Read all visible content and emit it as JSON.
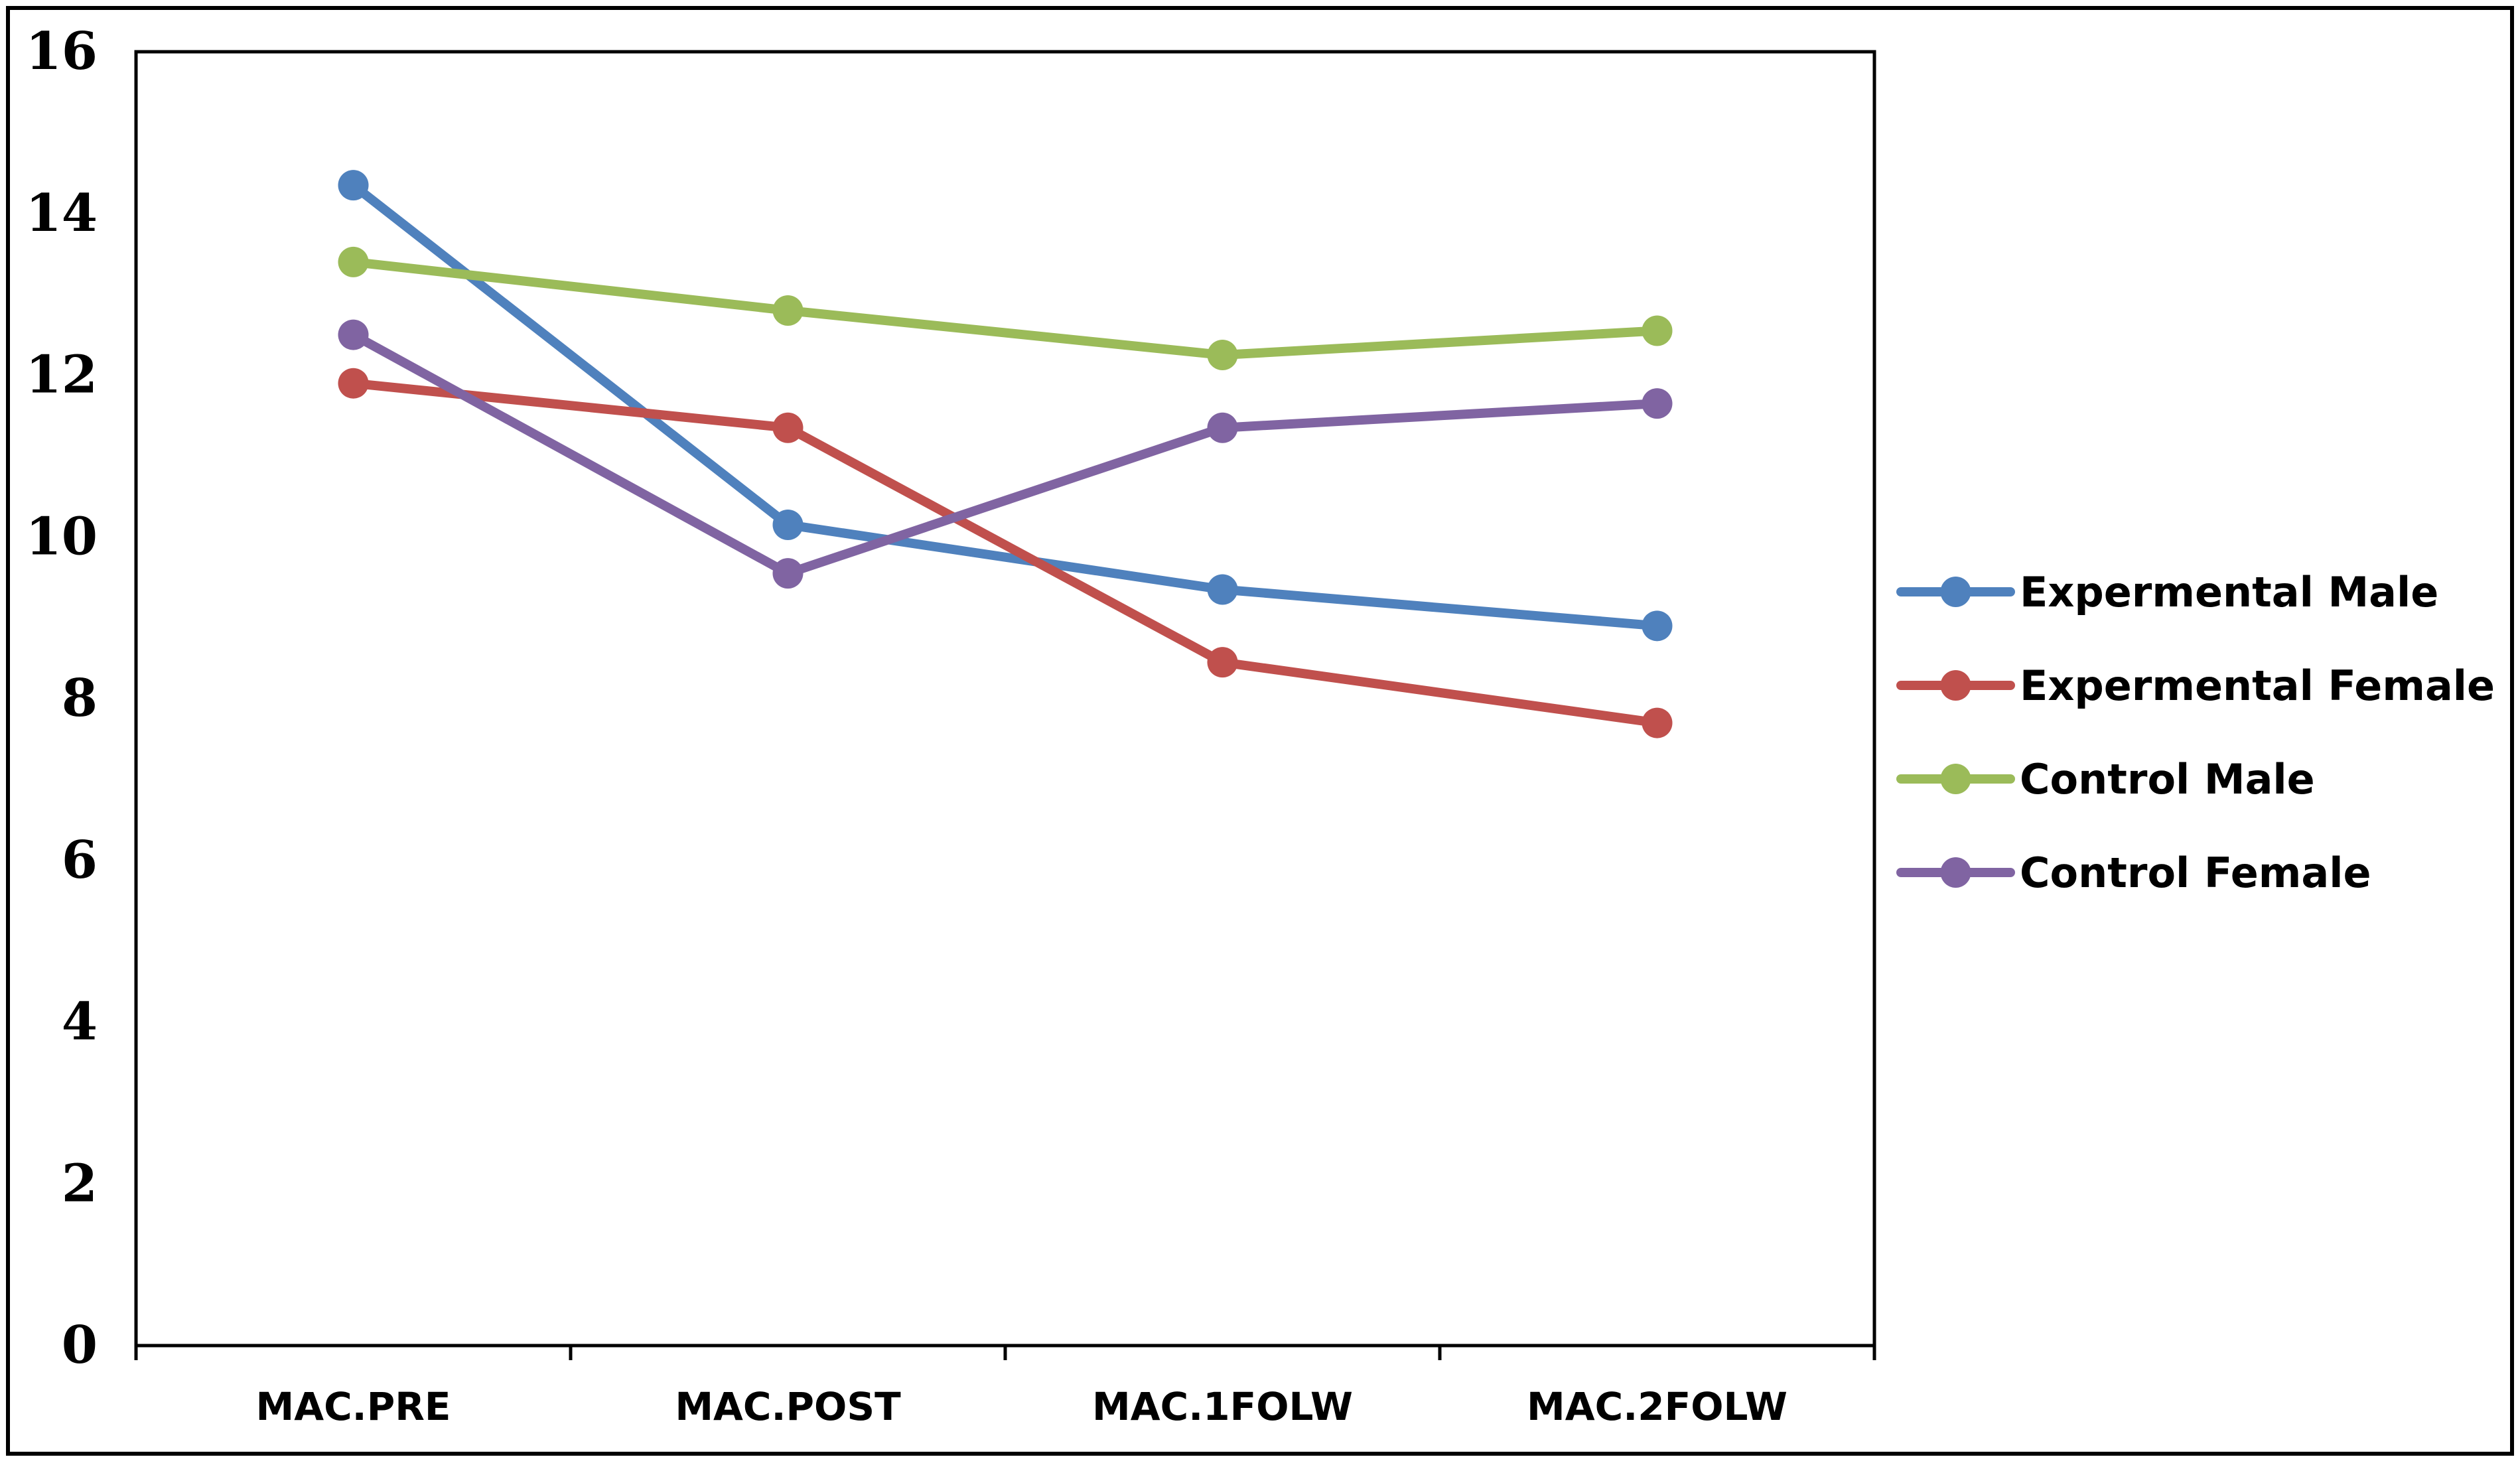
{
  "chart_data": {
    "type": "line",
    "categories": [
      "MAC.PRE",
      "MAC.POST",
      "MAC.1FOLW",
      "MAC.2FOLW"
    ],
    "series": [
      {
        "name": "Expermental Male",
        "color": "#4F81BD",
        "values": [
          14.35,
          10.15,
          9.35,
          8.9
        ]
      },
      {
        "name": "Expermental Female",
        "color": "#C0504D",
        "values": [
          11.9,
          11.35,
          8.45,
          7.7
        ]
      },
      {
        "name": "Control Male",
        "color": "#9BBB59",
        "values": [
          13.4,
          12.8,
          12.25,
          12.55
        ]
      },
      {
        "name": "Control Female",
        "color": "#8064A2",
        "values": [
          12.5,
          9.55,
          11.35,
          11.65
        ]
      }
    ],
    "ylim": [
      0,
      16
    ],
    "yticks": [
      "0",
      "2",
      "4",
      "6",
      "8",
      "10",
      "12",
      "14",
      "16"
    ],
    "grid": false,
    "legend_position": "right"
  }
}
